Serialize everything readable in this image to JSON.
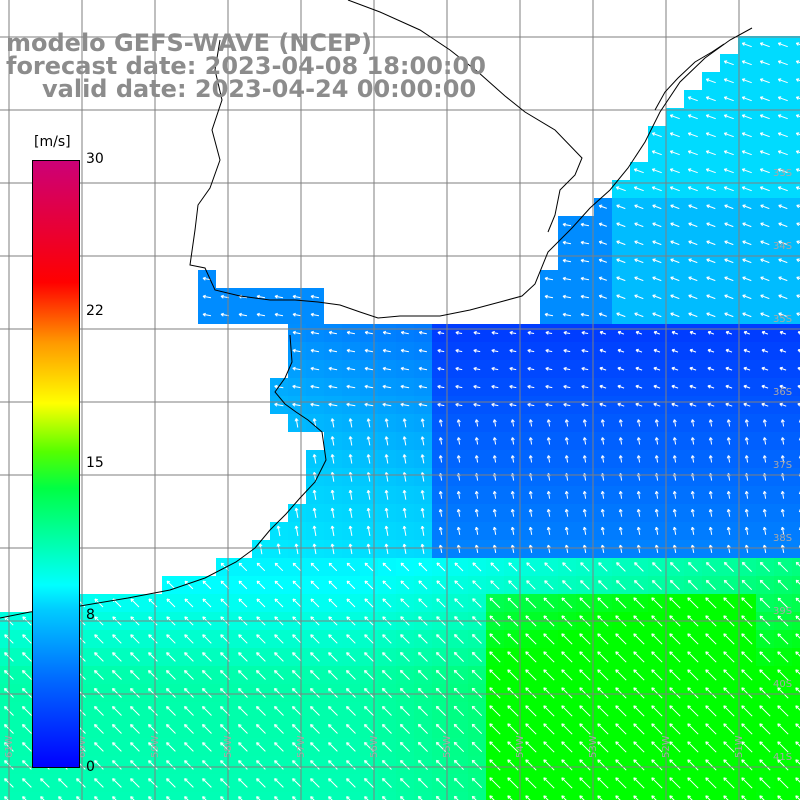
{
  "title": {
    "line1": "modelo GEFS-WAVE (NCEP)",
    "line2": "forecast date: 2023-04-08 18:00:00",
    "line3": "valid date: 2023-04-24 00:00:00"
  },
  "colorbar": {
    "unit": "[m/s]",
    "ticks": [
      "30",
      "22",
      "15",
      "8",
      "0"
    ],
    "colors": [
      "#0000ff",
      "#00a0ff",
      "#00ffff",
      "#00ff00",
      "#ffff00",
      "#ff0000",
      "#cc0077"
    ]
  },
  "latitude_labels": [
    "33S",
    "34S",
    "35S",
    "36S",
    "37S",
    "38S",
    "39S",
    "40S",
    "41S"
  ],
  "longitude_labels": [
    "61W",
    "60W",
    "59W",
    "58W",
    "57W",
    "56W",
    "55W",
    "54W",
    "53W",
    "52W",
    "51W"
  ],
  "map": {
    "land_color": "#ffffff",
    "grid_color": "#7f7f7f",
    "coast_color": "#000000",
    "arrow_color": "#ffffff"
  }
}
